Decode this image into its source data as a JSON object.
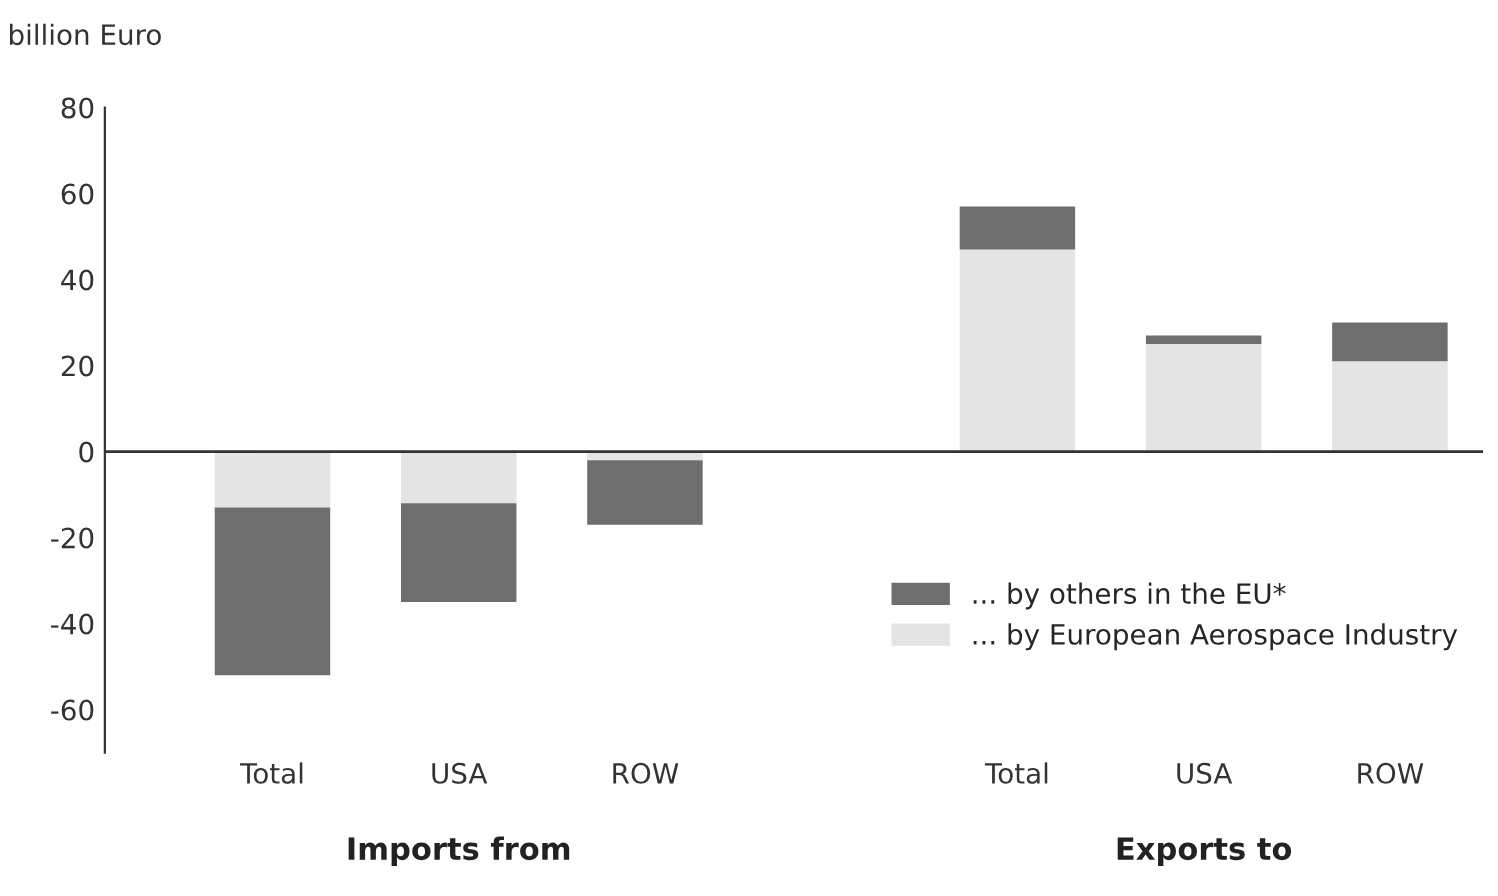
{
  "chart_data": {
    "type": "bar",
    "stacked": true,
    "ylabel": "billion Euro",
    "categories": [
      "Total",
      "USA",
      "ROW",
      null,
      "Total",
      "USA",
      "ROW"
    ],
    "series": [
      {
        "name": "... by European Aerospace Industry",
        "color": "#e4e4e4",
        "values": [
          -13,
          -12,
          -2,
          null,
          47,
          25,
          21
        ]
      },
      {
        "name": "... by others in the EU*",
        "color": "#6e6e6e",
        "values": [
          -39,
          -23,
          -15,
          null,
          10,
          2,
          9
        ]
      }
    ],
    "ylim": [
      -70,
      80
    ],
    "yticks": [
      -60,
      -40,
      -20,
      0,
      20,
      40,
      60,
      80
    ],
    "ref_lines": [
      {
        "axis": "y",
        "value": 0,
        "color": "#333333"
      }
    ],
    "annotations": [
      "Imports from",
      "Exports to"
    ],
    "grid": false,
    "legend": "bottom right"
  }
}
